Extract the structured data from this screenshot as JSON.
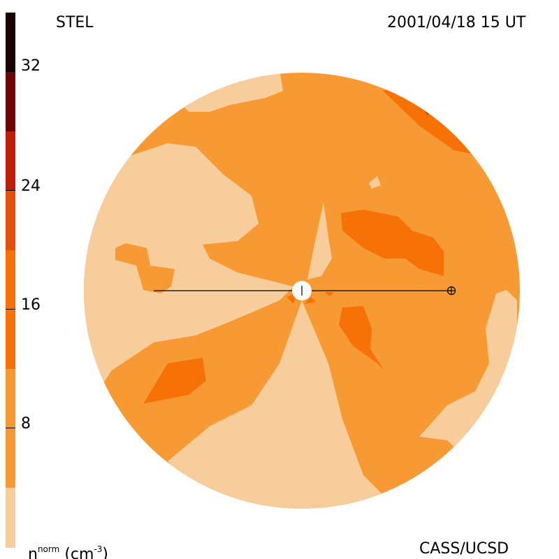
{
  "header": {
    "left_label": "STEL",
    "right_label": "2001/04/18 15 UT"
  },
  "footer": {
    "unit_base": "n",
    "unit_superscript": "norm",
    "unit_paren": "(cm",
    "unit_exponent": "-3",
    "unit_close": ")",
    "credit": "CASS/UCSD"
  },
  "colorbar": {
    "ticks": [
      "8",
      "16",
      "24",
      "32"
    ],
    "colors": [
      "#f7cd9c",
      "#f79a33",
      "#f77206",
      "#e44f0c",
      "#bd1d0b",
      "#960808",
      "#6e0505",
      "#3d0404",
      "#1a0202"
    ]
  }
}
